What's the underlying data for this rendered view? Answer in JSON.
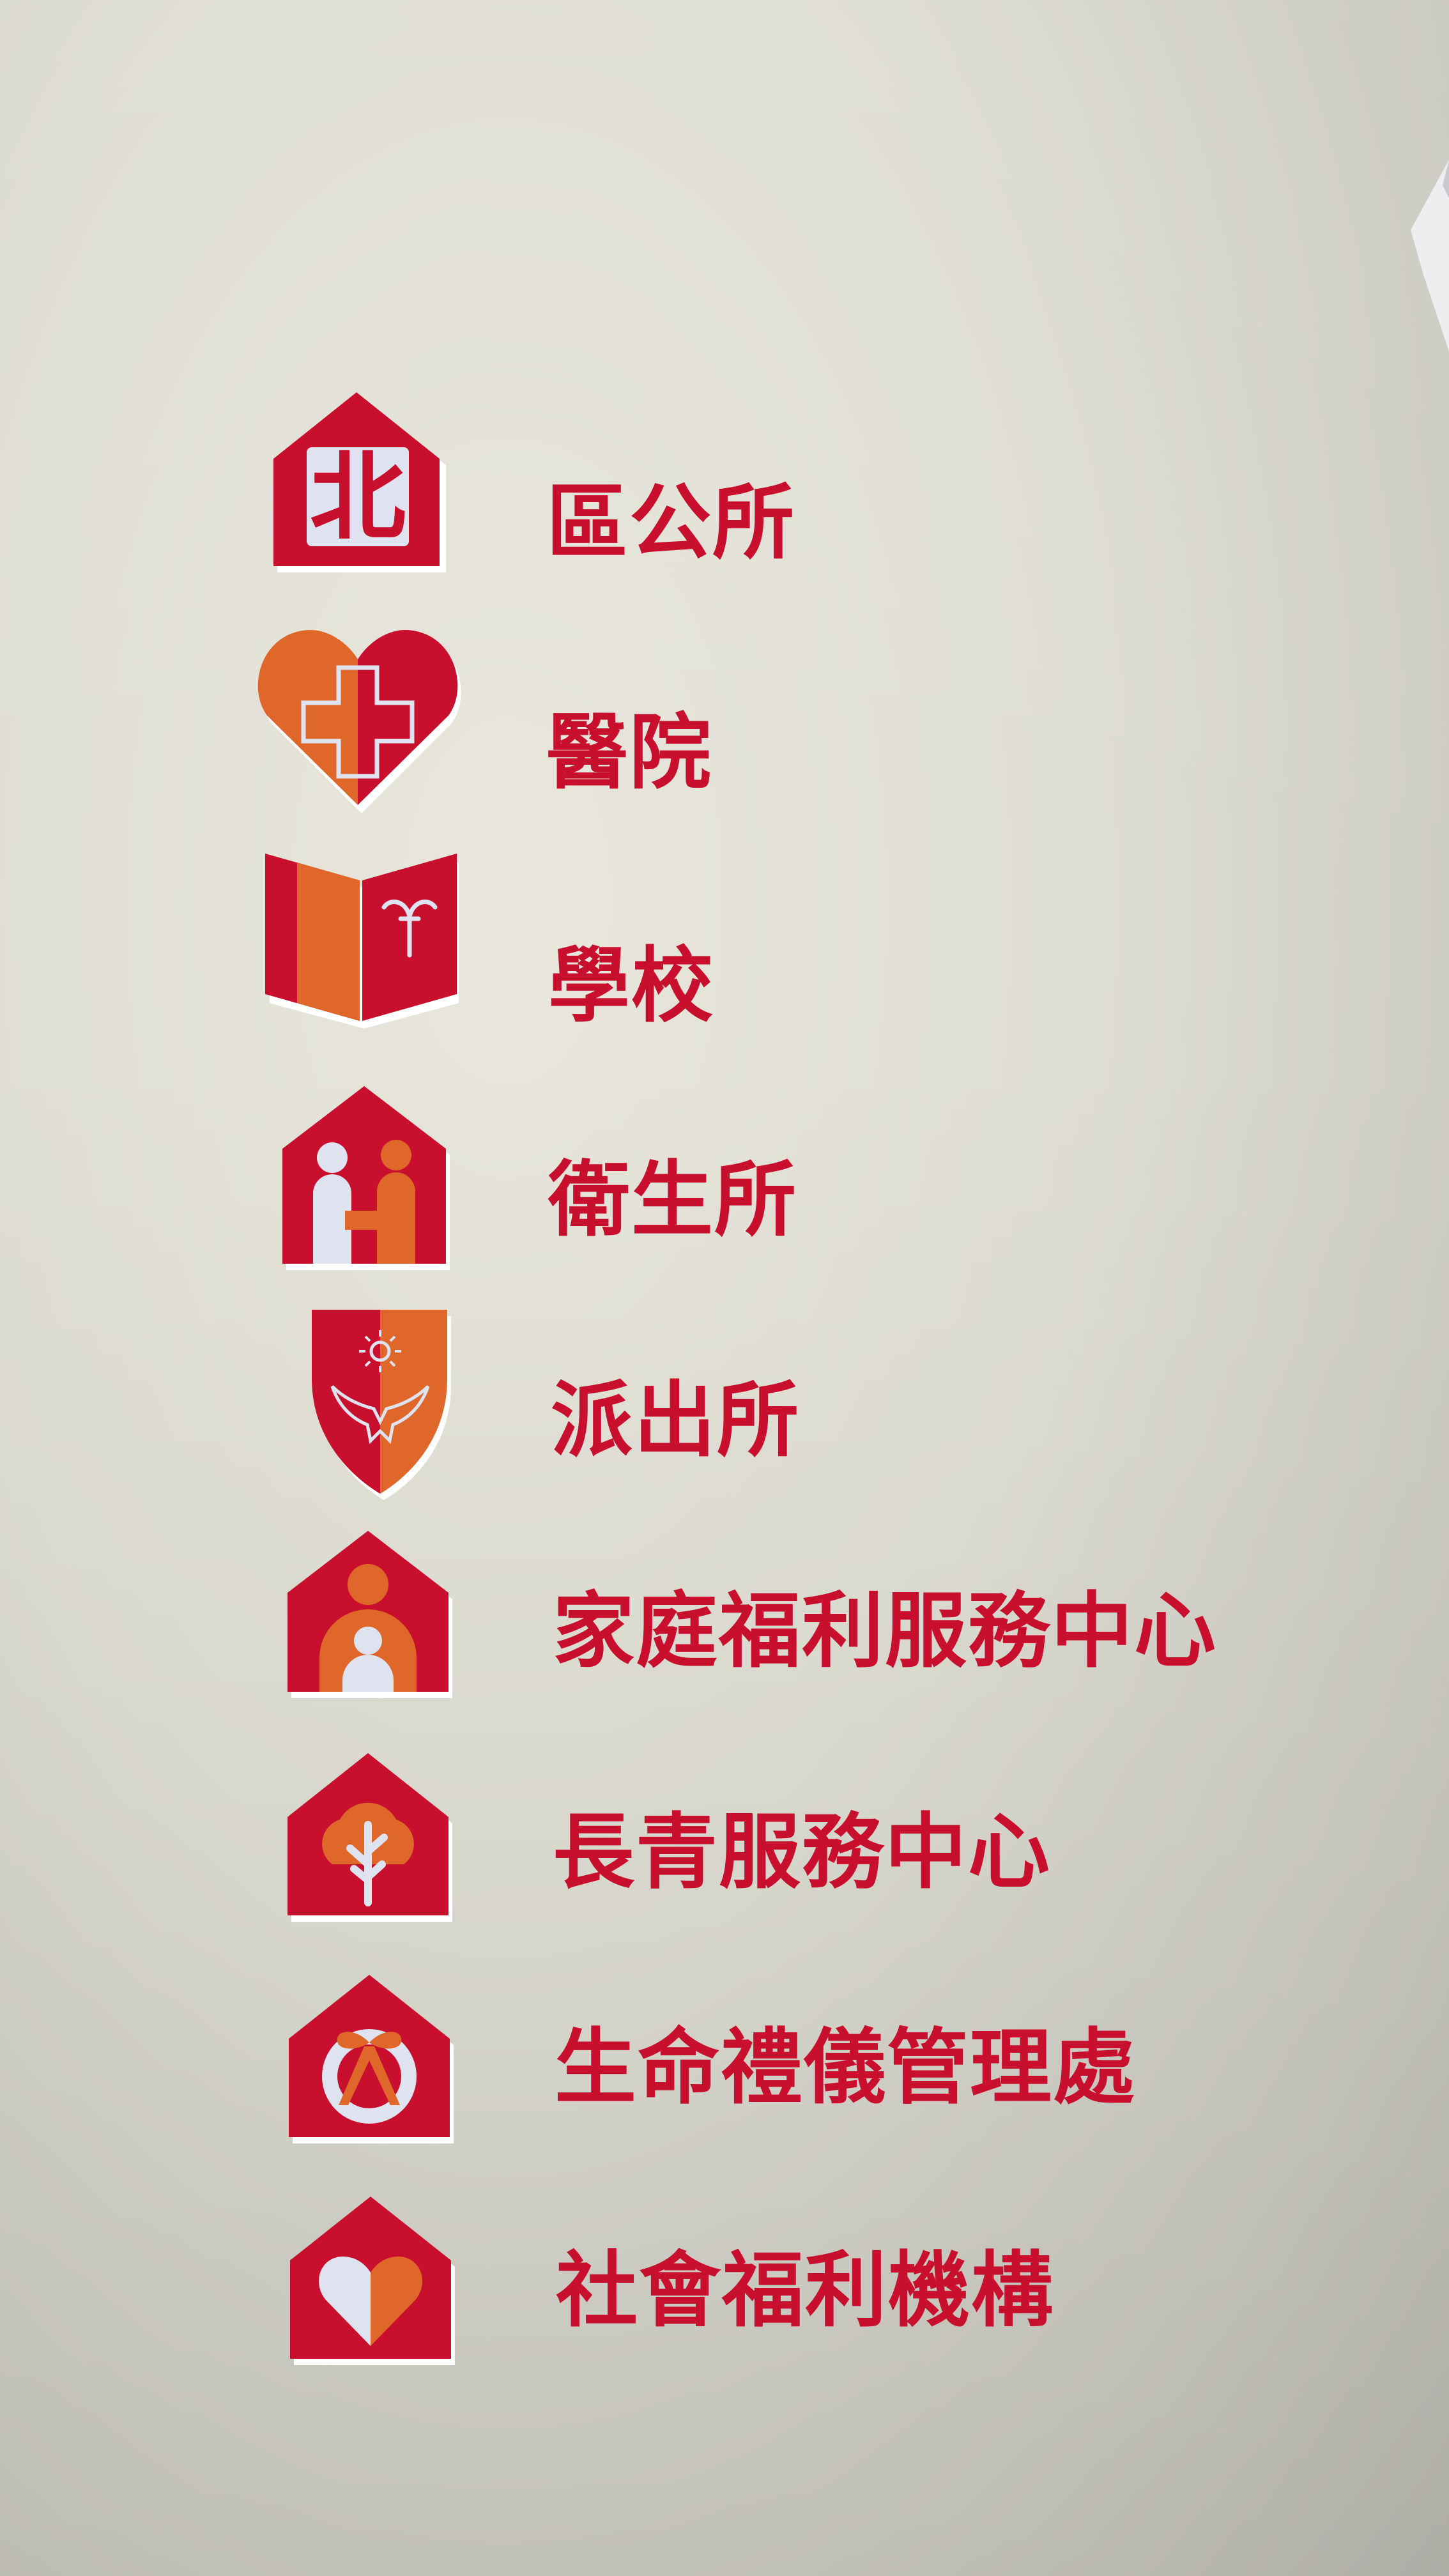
{
  "sign": {
    "colors": {
      "primary_red": "#c8102e",
      "accent_orange": "#e0672a",
      "icon_light": "#dfe3ef",
      "wall": "#dedcd1"
    },
    "items": [
      {
        "label": "區公所",
        "icon": "district-office-icon",
        "icon_text": "北"
      },
      {
        "label": "醫院",
        "icon": "hospital-heart-icon"
      },
      {
        "label": "學校",
        "icon": "school-book-icon"
      },
      {
        "label": "衛生所",
        "icon": "health-center-icon"
      },
      {
        "label": "派出所",
        "icon": "police-shield-icon"
      },
      {
        "label": "家庭福利服務中心",
        "icon": "family-welfare-icon"
      },
      {
        "label": "長青服務中心",
        "icon": "senior-tree-icon"
      },
      {
        "label": "生命禮儀管理處",
        "icon": "funeral-ribbon-icon"
      },
      {
        "label": "社會福利機構",
        "icon": "social-welfare-heart-icon"
      }
    ]
  }
}
